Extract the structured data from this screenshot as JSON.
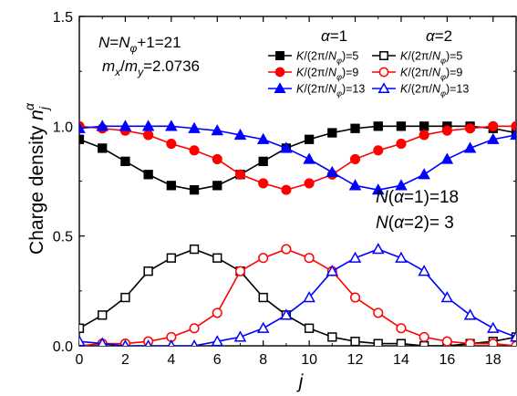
{
  "chart_data": {
    "type": "line",
    "xlabel": "j",
    "ylabel": "Charge density n_j^α",
    "xlim": [
      0,
      19
    ],
    "ylim": [
      0,
      1.5
    ],
    "x_ticks": [
      "0",
      "2",
      "4",
      "6",
      "8",
      "10",
      "12",
      "14",
      "16",
      "18"
    ],
    "y_ticks": [
      "0.0",
      "0.5",
      "1.0",
      "1.5"
    ],
    "grid": false,
    "legend_position": "top-right",
    "legend_headers": [
      "α=1",
      "α=2"
    ],
    "annotations": {
      "line1": "N=N_φ+1=21",
      "line2": "m_x/m_y=2.0736",
      "line3": "N(α=1)=18",
      "line4": "N(α=2)= 3"
    },
    "x": [
      0,
      1,
      2,
      3,
      4,
      5,
      6,
      7,
      8,
      9,
      10,
      11,
      12,
      13,
      14,
      15,
      16,
      17,
      18,
      19
    ],
    "series": [
      {
        "name": "K/(2π/N_φ)=5",
        "alpha": 1,
        "color": "#000000",
        "marker": "square",
        "filled": true,
        "values": [
          0.94,
          0.9,
          0.84,
          0.78,
          0.73,
          0.71,
          0.73,
          0.78,
          0.84,
          0.9,
          0.94,
          0.97,
          0.99,
          1.0,
          1.0,
          1.0,
          1.0,
          1.0,
          0.99,
          0.97
        ]
      },
      {
        "name": "K/(2π/N_φ)=9",
        "alpha": 1,
        "color": "#ff0000",
        "marker": "circle",
        "filled": true,
        "values": [
          1.0,
          0.99,
          0.98,
          0.96,
          0.92,
          0.89,
          0.85,
          0.78,
          0.74,
          0.71,
          0.74,
          0.78,
          0.85,
          0.89,
          0.92,
          0.96,
          0.98,
          0.99,
          1.0,
          1.0
        ]
      },
      {
        "name": "K/(2π/N_φ)=13",
        "alpha": 1,
        "color": "#0000ff",
        "marker": "triangle",
        "filled": true,
        "values": [
          0.99,
          1.0,
          1.0,
          1.0,
          1.0,
          0.99,
          0.98,
          0.96,
          0.94,
          0.9,
          0.85,
          0.79,
          0.73,
          0.71,
          0.73,
          0.78,
          0.85,
          0.9,
          0.94,
          0.96
        ]
      },
      {
        "name": "K/(2π/N_φ)=5",
        "alpha": 2,
        "color": "#000000",
        "marker": "square",
        "filled": false,
        "values": [
          0.08,
          0.14,
          0.22,
          0.34,
          0.4,
          0.44,
          0.4,
          0.34,
          0.22,
          0.14,
          0.08,
          0.04,
          0.02,
          0.01,
          0.01,
          0.0,
          0.0,
          0.01,
          0.02,
          0.04
        ]
      },
      {
        "name": "K/(2π/N_φ)=9",
        "alpha": 2,
        "color": "#ff0000",
        "marker": "circle",
        "filled": false,
        "values": [
          0.0,
          0.01,
          0.01,
          0.02,
          0.04,
          0.08,
          0.15,
          0.34,
          0.4,
          0.44,
          0.4,
          0.34,
          0.22,
          0.15,
          0.08,
          0.04,
          0.02,
          0.01,
          0.01,
          0.0
        ]
      },
      {
        "name": "K/(2π/N_φ)=13",
        "alpha": 2,
        "color": "#0000ff",
        "marker": "triangle",
        "filled": false,
        "values": [
          0.02,
          0.01,
          0.0,
          0.0,
          0.0,
          0.0,
          0.02,
          0.04,
          0.08,
          0.14,
          0.22,
          0.34,
          0.4,
          0.44,
          0.4,
          0.34,
          0.22,
          0.14,
          0.08,
          0.04
        ]
      }
    ]
  }
}
